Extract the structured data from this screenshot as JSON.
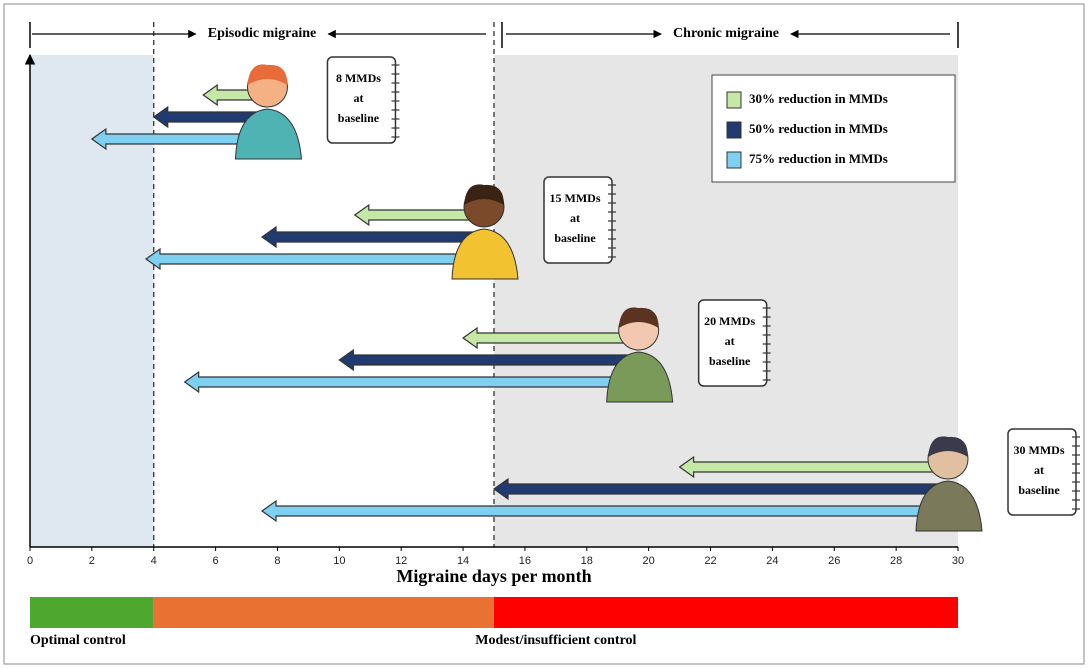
{
  "chart_data": {
    "type": "arrow",
    "xlabel": "Migraine days per month",
    "xlim": [
      0,
      30
    ],
    "xticks": [
      0,
      2,
      4,
      6,
      8,
      10,
      12,
      14,
      16,
      18,
      20,
      22,
      24,
      26,
      28,
      30
    ],
    "regions": [
      {
        "label": "Episodic migraine",
        "start": 0,
        "end": 15
      },
      {
        "label": "Chronic migraine",
        "start": 15,
        "end": 30
      }
    ],
    "shading": [
      {
        "start": 0,
        "end": 4,
        "color": "#dfe7f1"
      },
      {
        "start": 15,
        "end": 30,
        "color": "#e6e6e6"
      }
    ],
    "dividers": [
      4,
      15
    ],
    "baselines": [
      8,
      15,
      20,
      30
    ],
    "baseline_labels": [
      [
        "8 MMDs",
        "at",
        "baseline"
      ],
      [
        "15 MMDs",
        "at",
        "baseline"
      ],
      [
        "20 MMDs",
        "at",
        "baseline"
      ],
      [
        "30 MMDs",
        "at",
        "baseline"
      ]
    ],
    "series": [
      {
        "name": "30% reduction in MMDs",
        "color": "#c5e8a6",
        "values": [
          5.6,
          10.5,
          14,
          21
        ]
      },
      {
        "name": "50% reduction in MMDs",
        "color": "#1f3b70",
        "values": [
          4,
          7.5,
          10,
          15
        ]
      },
      {
        "name": "75% reduction in MMDs",
        "color": "#7fd0f0",
        "values": [
          2,
          3.75,
          5,
          7.5
        ]
      }
    ],
    "control": {
      "bands": [
        {
          "start": 0,
          "end": 4,
          "color": "#4ea72e"
        },
        {
          "start": 4,
          "end": 15,
          "color": "#e97132"
        },
        {
          "start": 15,
          "end": 30,
          "color": "#ff0000"
        }
      ],
      "labels": [
        "Optimal control",
        "Modest/insufficient control"
      ]
    }
  }
}
